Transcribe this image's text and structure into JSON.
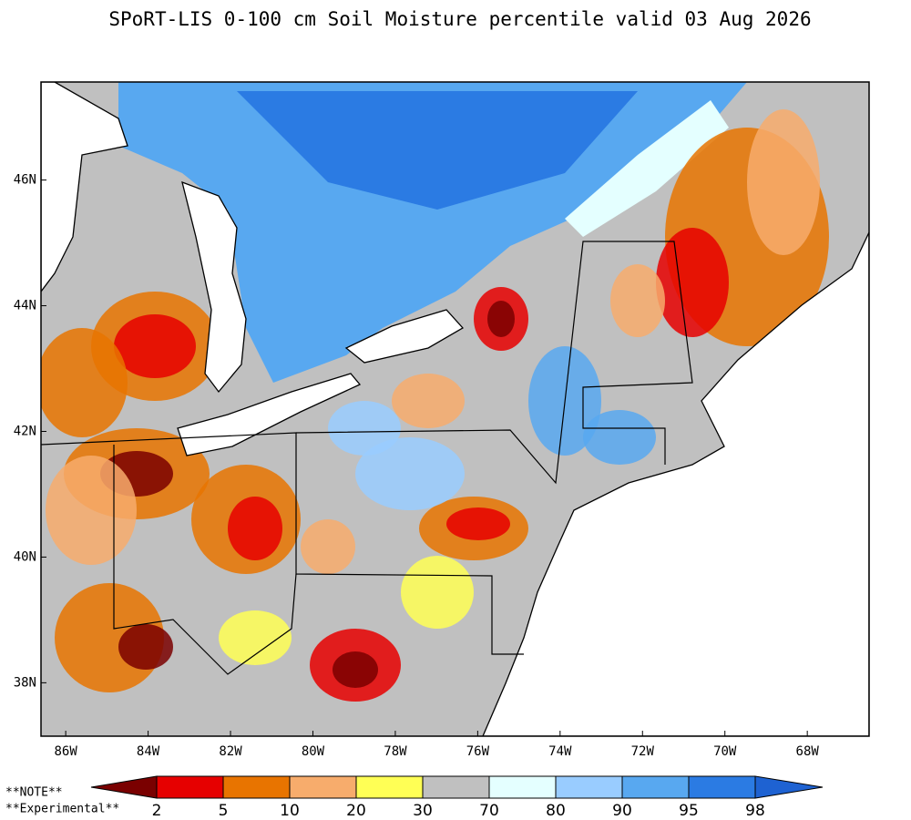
{
  "chart_data": {
    "type": "map",
    "title": "SPoRT-LIS 0-100 cm Soil Moisture percentile valid 03 Aug 2026",
    "xlim": [
      -86.6,
      -66.5
    ],
    "ylim": [
      37.15,
      47.56
    ],
    "xticks": [
      {
        "value": -86,
        "label": "86W"
      },
      {
        "value": -84,
        "label": "84W"
      },
      {
        "value": -82,
        "label": "82W"
      },
      {
        "value": -80,
        "label": "80W"
      },
      {
        "value": -78,
        "label": "78W"
      },
      {
        "value": -76,
        "label": "76W"
      },
      {
        "value": -74,
        "label": "74W"
      },
      {
        "value": -72,
        "label": "72W"
      },
      {
        "value": -70,
        "label": "70W"
      },
      {
        "value": -68,
        "label": "68W"
      }
    ],
    "yticks": [
      {
        "value": 38,
        "label": "38N"
      },
      {
        "value": 40,
        "label": "40N"
      },
      {
        "value": 42,
        "label": "42N"
      },
      {
        "value": 44,
        "label": "44N"
      },
      {
        "value": 46,
        "label": "46N"
      }
    ],
    "colorbar": {
      "boundaries": [
        2,
        5,
        10,
        20,
        30,
        70,
        80,
        90,
        95,
        98
      ],
      "colors": [
        "#7a0000",
        "#e60000",
        "#e87400",
        "#f7ac6c",
        "#ffff55",
        "#c0c0c0",
        "#e4ffff",
        "#99ccff",
        "#58a8f0",
        "#2b7be3",
        "#1e62d2"
      ]
    },
    "notes": [
      "**NOTE**",
      "**Experimental**"
    ]
  }
}
